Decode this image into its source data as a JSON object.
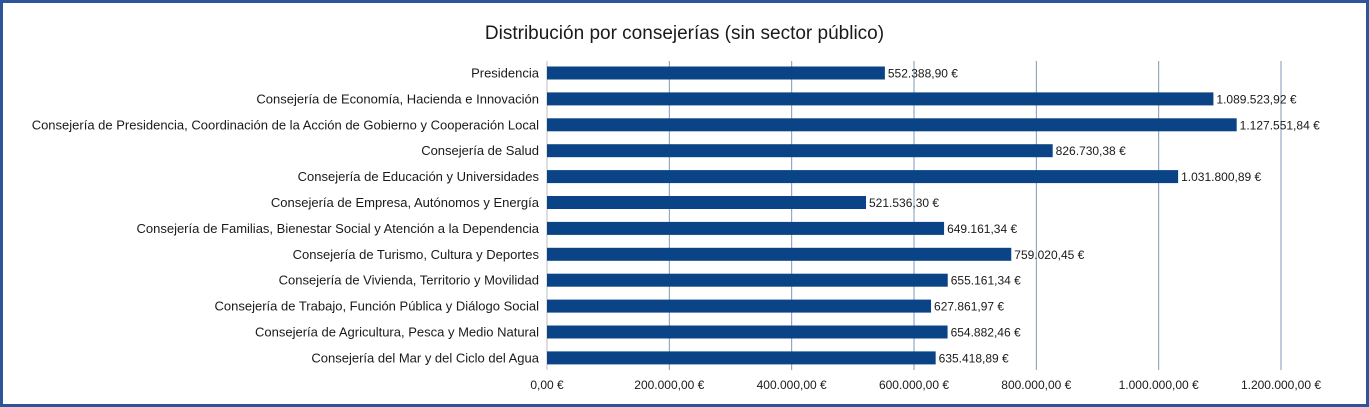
{
  "chart_data": {
    "type": "bar",
    "orientation": "horizontal",
    "title": "Distribución por consejerías (sin sector público)",
    "categories": [
      "Presidencia",
      "Consejería de Economía, Hacienda e Innovación",
      "Consejería de Presidencia, Coordinación de la Acción de Gobierno y Cooperación Local",
      "Consejería de Salud",
      "Consejería de Educación y Universidades",
      "Consejería de Empresa, Autónomos y Energía",
      "Consejería de Familias, Bienestar Social y Atención a la Dependencia",
      "Consejería de Turismo, Cultura y Deportes",
      "Consejería de Vivienda, Territorio y Movilidad",
      "Consejería de Trabajo, Función Pública y Diálogo Social",
      "Consejería de Agricultura, Pesca y Medio Natural",
      "Consejería del Mar y del Ciclo del Agua"
    ],
    "values": [
      552388.9,
      1089523.92,
      1127551.84,
      826730.38,
      1031800.89,
      521536.3,
      649161.34,
      759020.45,
      655161.34,
      627861.97,
      654882.46,
      635418.89
    ],
    "data_labels": [
      "552.388,90 €",
      "1.089.523,92 €",
      "1.127.551,84 €",
      "826.730,38 €",
      "1.031.800,89 €",
      "521.536,30 €",
      "649.161,34 €",
      "759.020,45 €",
      "655.161,34 €",
      "627.861,97 €",
      "654.882,46 €",
      "635.418,89 €"
    ],
    "xlim": [
      0,
      1200000
    ],
    "xticks": [
      0,
      200000,
      400000,
      600000,
      800000,
      1000000,
      1200000
    ],
    "xtick_labels": [
      "0,00 €",
      "200.000,00 €",
      "400.000,00 €",
      "600.000,00 €",
      "800.000,00 €",
      "1.000.000,00 €",
      "1.200.000,00 €"
    ],
    "xlabel": "",
    "ylabel": "",
    "grid": "vertical",
    "legend": "none",
    "bar_color": "#0a4486",
    "grid_color": "#7f9ab8",
    "border_color": "#2e5597"
  }
}
